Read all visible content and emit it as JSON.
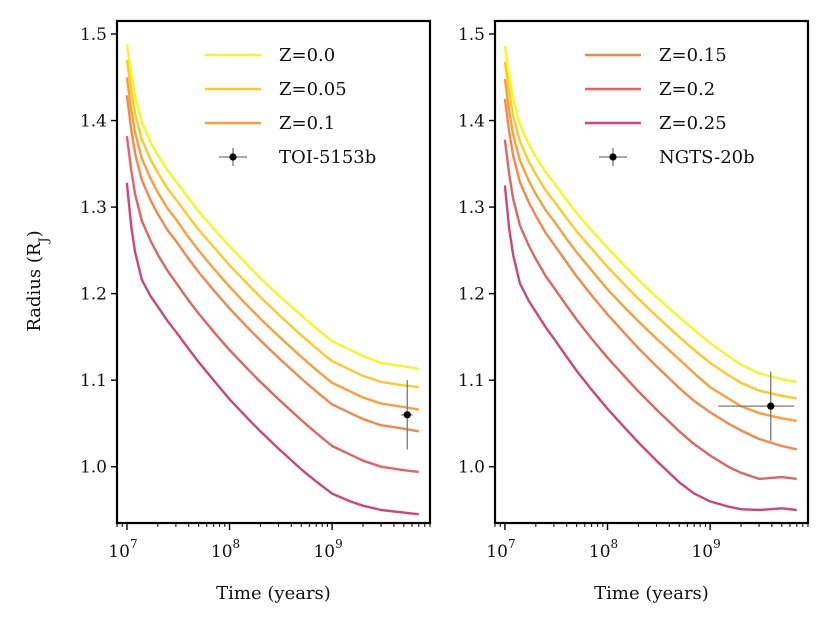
{
  "chart_data": [
    {
      "type": "line",
      "xlabel": "Time (years)",
      "ylabel": "Radius (R",
      "ylabel_sub": "J",
      "ylabel_close": ")",
      "xscale": "log",
      "xlim": [
        8000000,
        9000000000
      ],
      "ylim": [
        0.935,
        1.515
      ],
      "x_ticks": [
        10000000,
        100000000,
        1000000000
      ],
      "x_tick_base": "10",
      "x_tick_exponents": [
        "7",
        "8",
        "9"
      ],
      "y_ticks": [
        1.0,
        1.1,
        1.2,
        1.3,
        1.4,
        1.5
      ],
      "y_tick_labels": [
        "1.0",
        "1.1",
        "1.2",
        "1.3",
        "1.4",
        "1.5"
      ],
      "legend_location": "upper right",
      "x": [
        10000000,
        11000000,
        12000000,
        14000000,
        17000000,
        20000000,
        25000000,
        30000000,
        40000000,
        50000000,
        70000000,
        100000000,
        150000000,
        200000000,
        300000000,
        500000000,
        700000000,
        1000000000,
        1500000000,
        2000000000,
        3000000000,
        5000000000,
        7000000000
      ],
      "series": [
        {
          "name": "Z=0.0",
          "color": "#f0f921",
          "values": [
            1.488,
            1.455,
            1.428,
            1.398,
            1.375,
            1.36,
            1.342,
            1.33,
            1.31,
            1.295,
            1.275,
            1.255,
            1.233,
            1.218,
            1.198,
            1.175,
            1.16,
            1.145,
            1.135,
            1.128,
            1.12,
            1.116,
            1.113
          ]
        },
        {
          "name": "Z=0.05",
          "color": "#fdca26",
          "values": [
            1.47,
            1.435,
            1.408,
            1.378,
            1.355,
            1.34,
            1.321,
            1.309,
            1.289,
            1.274,
            1.254,
            1.233,
            1.211,
            1.196,
            1.176,
            1.152,
            1.137,
            1.122,
            1.112,
            1.105,
            1.098,
            1.094,
            1.092
          ]
        },
        {
          "name": "Z=0.1",
          "color": "#fb9f3a",
          "values": [
            1.45,
            1.413,
            1.386,
            1.356,
            1.333,
            1.317,
            1.298,
            1.286,
            1.265,
            1.25,
            1.229,
            1.208,
            1.186,
            1.171,
            1.151,
            1.127,
            1.112,
            1.097,
            1.087,
            1.08,
            1.073,
            1.069,
            1.066
          ]
        },
        {
          "name": "TOI-5153b",
          "color": "#000000",
          "type": "errorbar",
          "x": 5400000000,
          "y": 1.06,
          "xerr": 700000000,
          "yerr": 0.04
        }
      ],
      "curves_not_in_legend": [
        {
          "color": "#f48849",
          "values": [
            1.429,
            1.39,
            1.362,
            1.331,
            1.308,
            1.292,
            1.273,
            1.261,
            1.24,
            1.225,
            1.204,
            1.183,
            1.161,
            1.146,
            1.126,
            1.102,
            1.087,
            1.072,
            1.062,
            1.055,
            1.048,
            1.044,
            1.041
          ]
        },
        {
          "color": "#e16462",
          "values": [
            1.382,
            1.343,
            1.315,
            1.284,
            1.261,
            1.245,
            1.226,
            1.213,
            1.192,
            1.177,
            1.156,
            1.135,
            1.113,
            1.098,
            1.078,
            1.054,
            1.039,
            1.024,
            1.014,
            1.007,
            1.0,
            0.996,
            0.994
          ]
        },
        {
          "color": "#cc4778",
          "values": [
            1.328,
            1.278,
            1.248,
            1.216,
            1.197,
            1.185,
            1.168,
            1.156,
            1.136,
            1.121,
            1.1,
            1.078,
            1.056,
            1.041,
            1.021,
            0.997,
            0.983,
            0.969,
            0.96,
            0.955,
            0.95,
            0.947,
            0.945
          ]
        }
      ]
    },
    {
      "type": "line",
      "xlabel": "Time (years)",
      "xscale": "log",
      "xlim": [
        8000000,
        9000000000
      ],
      "ylim": [
        0.935,
        1.515
      ],
      "x_ticks": [
        10000000,
        100000000,
        1000000000
      ],
      "x_tick_base": "10",
      "x_tick_exponents": [
        "7",
        "8",
        "9"
      ],
      "y_ticks": [
        1.0,
        1.1,
        1.2,
        1.3,
        1.4,
        1.5
      ],
      "y_tick_labels": [
        "1.0",
        "1.1",
        "1.2",
        "1.3",
        "1.4",
        "1.5"
      ],
      "legend_location": "upper right",
      "x": [
        10000000,
        11000000,
        12000000,
        14000000,
        17000000,
        20000000,
        25000000,
        30000000,
        40000000,
        50000000,
        70000000,
        100000000,
        150000000,
        200000000,
        300000000,
        500000000,
        700000000,
        1000000000,
        1500000000,
        2000000000,
        3000000000,
        5000000000,
        7000000000
      ],
      "series": [
        {
          "name": "Z=0.15",
          "color": "#f48849",
          "values": [
            1.425,
            1.387,
            1.36,
            1.329,
            1.306,
            1.29,
            1.27,
            1.257,
            1.236,
            1.22,
            1.198,
            1.176,
            1.153,
            1.137,
            1.116,
            1.091,
            1.076,
            1.063,
            1.05,
            1.042,
            1.032,
            1.024,
            1.02
          ]
        },
        {
          "name": "Z=0.2",
          "color": "#e16462",
          "values": [
            1.378,
            1.338,
            1.31,
            1.279,
            1.256,
            1.24,
            1.22,
            1.207,
            1.186,
            1.17,
            1.148,
            1.126,
            1.103,
            1.087,
            1.066,
            1.041,
            1.026,
            1.013,
            1.0,
            0.993,
            0.986,
            0.988,
            0.986
          ]
        },
        {
          "name": "Z=0.25",
          "color": "#cc4778",
          "values": [
            1.325,
            1.275,
            1.245,
            1.212,
            1.192,
            1.179,
            1.161,
            1.148,
            1.127,
            1.111,
            1.089,
            1.067,
            1.044,
            1.028,
            1.007,
            0.982,
            0.969,
            0.96,
            0.954,
            0.951,
            0.95,
            0.952,
            0.95
          ]
        },
        {
          "name": "NGTS-20b",
          "color": "#000000",
          "type": "errorbar",
          "x": 3900000000,
          "y": 1.07,
          "xerr": 2700000000,
          "yerr": 0.04
        }
      ],
      "curves_not_in_legend": [
        {
          "color": "#f0f921",
          "values": [
            1.486,
            1.453,
            1.426,
            1.396,
            1.373,
            1.358,
            1.34,
            1.328,
            1.308,
            1.293,
            1.273,
            1.253,
            1.231,
            1.216,
            1.196,
            1.173,
            1.158,
            1.143,
            1.128,
            1.118,
            1.108,
            1.101,
            1.098
          ]
        },
        {
          "color": "#fdca26",
          "values": [
            1.468,
            1.433,
            1.406,
            1.376,
            1.353,
            1.338,
            1.319,
            1.307,
            1.287,
            1.272,
            1.252,
            1.231,
            1.209,
            1.194,
            1.174,
            1.15,
            1.135,
            1.12,
            1.106,
            1.097,
            1.088,
            1.082,
            1.079
          ]
        },
        {
          "color": "#fb9f3a",
          "values": [
            1.448,
            1.411,
            1.384,
            1.354,
            1.331,
            1.315,
            1.296,
            1.284,
            1.263,
            1.248,
            1.227,
            1.205,
            1.183,
            1.168,
            1.148,
            1.124,
            1.108,
            1.092,
            1.079,
            1.07,
            1.062,
            1.056,
            1.053
          ]
        }
      ]
    }
  ]
}
